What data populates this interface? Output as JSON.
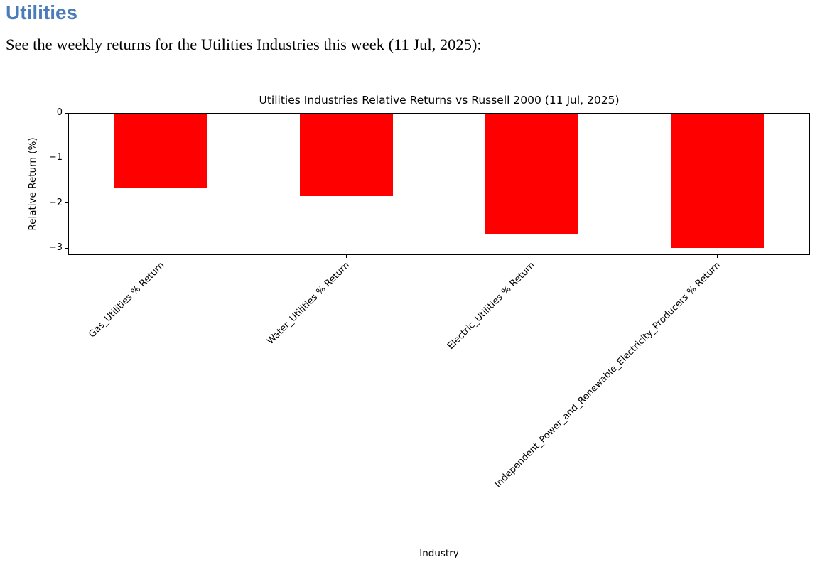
{
  "page": {
    "heading": "Utilities",
    "intro": "See the weekly returns for the Utilities Industries this week (11 Jul, 2025):"
  },
  "colors": {
    "heading_blue": "#4a7cba",
    "bar_red": "#ff0000",
    "axis_black": "#000000"
  },
  "chart_data": {
    "type": "bar",
    "title": "Utilities Industries Relative Returns vs Russell 2000 (11 Jul, 2025)",
    "xlabel": "Industry",
    "ylabel": "Relative Return (%)",
    "categories": [
      "Gas_Utilities % Return",
      "Water_Utilities % Return",
      "Electric_Utilities % Return",
      "Independent_Power_and_Renewable_Electricity_Producers % Return"
    ],
    "values": [
      -1.66,
      -1.83,
      -2.66,
      -2.98
    ],
    "bar_color": "#ff0000",
    "bar_rel_width": 0.5,
    "yticks": [
      0,
      -1,
      -2,
      -3
    ],
    "ylim": [
      -3.15,
      0
    ],
    "x_tick_rotation_deg": 45,
    "grid": false,
    "legend": false
  }
}
